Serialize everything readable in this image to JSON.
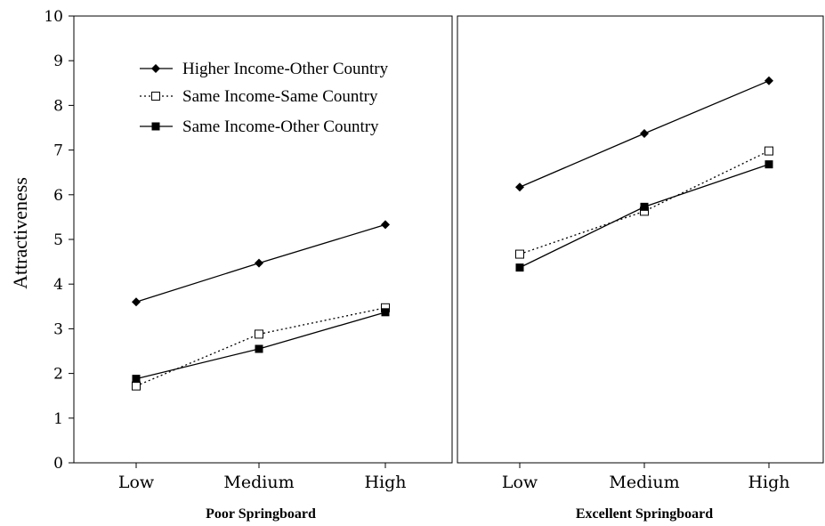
{
  "chart_data": {
    "type": "line",
    "ylabel": "Attractiveness",
    "ylim": [
      0,
      10
    ],
    "yticks": [
      "0",
      "1",
      "2",
      "3",
      "4",
      "5",
      "6",
      "7",
      "8",
      "9",
      "10"
    ],
    "categories": [
      "Low",
      "Medium",
      "High"
    ],
    "legend_position": "top-left of left panel",
    "panels": [
      {
        "title": "Poor Springboard",
        "series": [
          {
            "name": "Higher Income-Other Country",
            "values": [
              3.6,
              4.47,
              5.33
            ]
          },
          {
            "name": "Same Income-Same Country",
            "values": [
              1.72,
              2.88,
              3.47
            ]
          },
          {
            "name": "Same Income-Other Country",
            "values": [
              1.88,
              2.55,
              3.37
            ]
          }
        ]
      },
      {
        "title": "Excellent Springboard",
        "series": [
          {
            "name": "Higher Income-Other Country",
            "values": [
              6.17,
              7.37,
              8.55
            ]
          },
          {
            "name": "Same Income-Same Country",
            "values": [
              4.67,
              5.63,
              6.98
            ]
          },
          {
            "name": "Same Income-Other Country",
            "values": [
              4.37,
              5.73,
              6.68
            ]
          }
        ]
      }
    ]
  }
}
